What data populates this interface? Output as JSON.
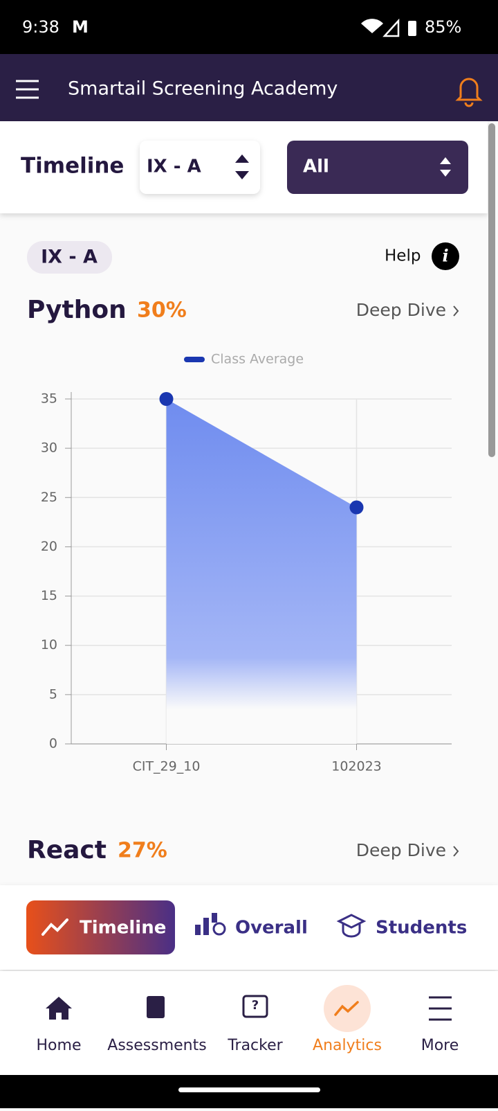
{
  "status_bar": {
    "time": "9:38",
    "battery": "85%"
  },
  "header": {
    "title": "Smartail Screening Academy"
  },
  "filters": {
    "label": "Timeline",
    "class_select": "IX - A",
    "filter_select": "All"
  },
  "class_badge": "IX - A",
  "help": "Help",
  "python_section": {
    "subject": "Python",
    "score": "30%",
    "link": "Deep Dive"
  },
  "chart_data": {
    "type": "area",
    "categories": [
      "CIT_29_10",
      "102023"
    ],
    "series": [
      {
        "name": "Class Average",
        "color": "#1a37b0",
        "values": [
          35,
          24
        ]
      }
    ],
    "ylim": [
      0,
      35
    ],
    "yticks": [
      0,
      5,
      10,
      15,
      20,
      25,
      30,
      35
    ],
    "grid": true
  },
  "react_section": {
    "subject": "React",
    "score": "27%",
    "link": "Deep Dive"
  },
  "tabs": [
    "Timeline",
    "Overall",
    "Students"
  ],
  "bottom_nav": [
    "Home",
    "Assessments",
    "Tracker",
    "Analytics",
    "More"
  ]
}
